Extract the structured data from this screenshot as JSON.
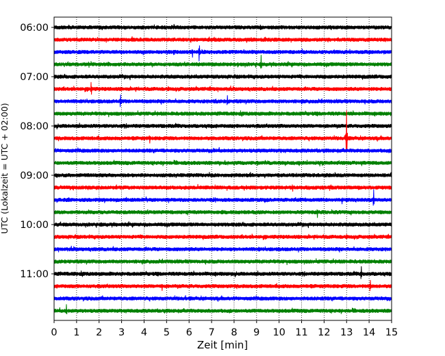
{
  "chart_data": {
    "type": "line",
    "title": "",
    "xlabel": "Zeit  [min]",
    "ylabel": "UTC (Lokalzeit = UTC + 02:00)",
    "xlim": [
      0,
      15
    ],
    "x_ticks": [
      "0",
      "1",
      "2",
      "3",
      "4",
      "5",
      "6",
      "7",
      "8",
      "9",
      "10",
      "11",
      "12",
      "13",
      "14",
      "15"
    ],
    "y_ticks": [
      "06:00",
      "07:00",
      "08:00",
      "09:00",
      "10:00",
      "11:00"
    ],
    "row_colors": [
      "#000000",
      "#ff0000",
      "#0000ff",
      "#008000"
    ],
    "grid": "vertical dotted at each minute",
    "legend": "none",
    "traces": [
      {
        "start": "06:00",
        "color": "black",
        "events": []
      },
      {
        "start": "06:15",
        "color": "red",
        "events": []
      },
      {
        "start": "06:30",
        "color": "blue",
        "events": [
          {
            "t": 6.15,
            "amp": 0.5
          },
          {
            "t": 6.45,
            "amp": 1.0
          }
        ]
      },
      {
        "start": "06:45",
        "color": "green",
        "events": [
          {
            "t": 9.2,
            "amp": 0.8
          }
        ]
      },
      {
        "start": "07:00",
        "color": "black",
        "events": []
      },
      {
        "start": "07:15",
        "color": "red",
        "events": [
          {
            "t": 1.65,
            "amp": 0.8
          }
        ]
      },
      {
        "start": "07:30",
        "color": "blue",
        "events": [
          {
            "t": 2.95,
            "amp": 0.8
          },
          {
            "t": 7.2,
            "amp": 0.3
          },
          {
            "t": 7.7,
            "amp": 0.6
          }
        ]
      },
      {
        "start": "07:45",
        "color": "green",
        "events": []
      },
      {
        "start": "08:00",
        "color": "black",
        "events": []
      },
      {
        "start": "08:15",
        "color": "red",
        "events": [
          {
            "t": 4.25,
            "amp": 0.5
          },
          {
            "t": 13.0,
            "amp": 2.5
          }
        ]
      },
      {
        "start": "08:30",
        "color": "blue",
        "events": [
          {
            "t": 10.1,
            "amp": 0.25
          }
        ]
      },
      {
        "start": "08:45",
        "color": "green",
        "events": []
      },
      {
        "start": "09:00",
        "color": "black",
        "events": []
      },
      {
        "start": "09:15",
        "color": "red",
        "events": [
          {
            "t": 10.6,
            "amp": 0.45
          }
        ]
      },
      {
        "start": "09:30",
        "color": "blue",
        "events": [
          {
            "t": 2.0,
            "amp": 0.3
          },
          {
            "t": 12.8,
            "amp": 0.4
          },
          {
            "t": 14.2,
            "amp": 1.0
          }
        ]
      },
      {
        "start": "09:45",
        "color": "green",
        "events": [
          {
            "t": 11.7,
            "amp": 0.5
          }
        ]
      },
      {
        "start": "10:00",
        "color": "black",
        "events": []
      },
      {
        "start": "10:15",
        "color": "red",
        "events": []
      },
      {
        "start": "10:30",
        "color": "blue",
        "events": [
          {
            "t": 9.1,
            "amp": 0.3
          }
        ]
      },
      {
        "start": "10:45",
        "color": "green",
        "events": []
      },
      {
        "start": "11:00",
        "color": "black",
        "events": [
          {
            "t": 13.65,
            "amp": 0.8
          }
        ]
      },
      {
        "start": "11:15",
        "color": "red",
        "events": [
          {
            "t": 4.8,
            "amp": 0.4
          },
          {
            "t": 14.05,
            "amp": 0.7
          }
        ]
      },
      {
        "start": "11:30",
        "color": "blue",
        "events": []
      },
      {
        "start": "11:45",
        "color": "green",
        "events": [
          {
            "t": 0.55,
            "amp": 0.6
          }
        ]
      }
    ]
  }
}
